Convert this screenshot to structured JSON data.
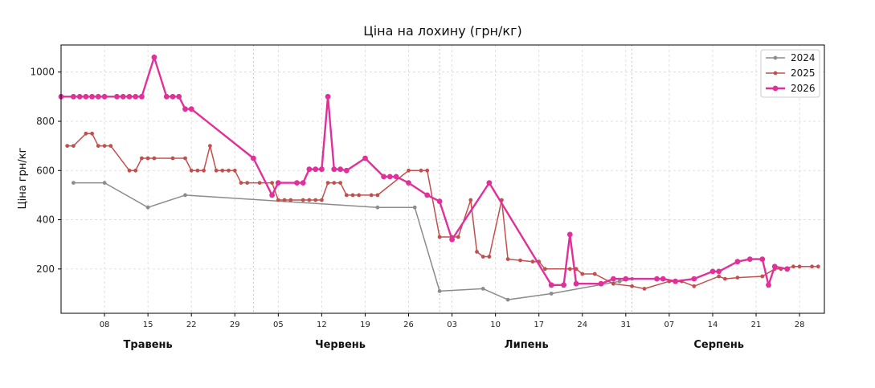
{
  "chart_data": {
    "type": "line",
    "title": "Ціна на лохину (грн/кг)",
    "xlabel": "",
    "ylabel": "Ціна грн/кг",
    "x_range": [
      "05-01",
      "09-01"
    ],
    "ylim": [
      20,
      1110
    ],
    "yticks": [
      200,
      400,
      600,
      800,
      1000
    ],
    "xticks": [
      {
        "date": "05-08",
        "label": "08"
      },
      {
        "date": "05-15",
        "label": "15"
      },
      {
        "date": "05-22",
        "label": "22"
      },
      {
        "date": "05-29",
        "label": "29"
      },
      {
        "date": "06-05",
        "label": "05"
      },
      {
        "date": "06-12",
        "label": "12"
      },
      {
        "date": "06-19",
        "label": "19"
      },
      {
        "date": "06-26",
        "label": "26"
      },
      {
        "date": "07-03",
        "label": "03"
      },
      {
        "date": "07-10",
        "label": "10"
      },
      {
        "date": "07-17",
        "label": "17"
      },
      {
        "date": "07-24",
        "label": "24"
      },
      {
        "date": "07-31",
        "label": "31"
      },
      {
        "date": "08-07",
        "label": "07"
      },
      {
        "date": "08-14",
        "label": "14"
      },
      {
        "date": "08-21",
        "label": "21"
      },
      {
        "date": "08-28",
        "label": "28"
      }
    ],
    "months": [
      {
        "label": "Травень",
        "center": "05-15"
      },
      {
        "label": "Червень",
        "center": "06-15"
      },
      {
        "label": "Липень",
        "center": "07-15"
      },
      {
        "label": "Серпень",
        "center": "08-15"
      }
    ],
    "month_separators": [
      "06-01",
      "07-01",
      "08-01"
    ],
    "grid": true,
    "legend": "top-right",
    "series": [
      {
        "name": "2024",
        "color": "#8c8c8c",
        "points": [
          [
            "05-03",
            550
          ],
          [
            "05-08",
            550
          ],
          [
            "05-15",
            450
          ],
          [
            "05-21",
            500
          ],
          [
            "06-21",
            450
          ],
          [
            "06-27",
            450
          ],
          [
            "07-01",
            110
          ],
          [
            "07-08",
            120
          ],
          [
            "07-12",
            75
          ],
          [
            "07-19",
            100
          ],
          [
            "07-30",
            150
          ],
          [
            "08-01",
            160
          ]
        ]
      },
      {
        "name": "2025",
        "color": "#c0504d",
        "points": [
          [
            "05-02",
            700
          ],
          [
            "05-03",
            700
          ],
          [
            "05-05",
            750
          ],
          [
            "05-06",
            750
          ],
          [
            "05-07",
            700
          ],
          [
            "05-08",
            700
          ],
          [
            "05-09",
            700
          ],
          [
            "05-12",
            600
          ],
          [
            "05-13",
            600
          ],
          [
            "05-14",
            650
          ],
          [
            "05-15",
            650
          ],
          [
            "05-16",
            650
          ],
          [
            "05-19",
            650
          ],
          [
            "05-21",
            650
          ],
          [
            "05-22",
            600
          ],
          [
            "05-23",
            600
          ],
          [
            "05-24",
            600
          ],
          [
            "05-25",
            700
          ],
          [
            "05-26",
            600
          ],
          [
            "05-27",
            600
          ],
          [
            "05-28",
            600
          ],
          [
            "05-29",
            600
          ],
          [
            "05-30",
            550
          ],
          [
            "05-31",
            550
          ],
          [
            "06-02",
            550
          ],
          [
            "06-04",
            550
          ],
          [
            "06-05",
            480
          ],
          [
            "06-06",
            480
          ],
          [
            "06-07",
            480
          ],
          [
            "06-09",
            480
          ],
          [
            "06-10",
            480
          ],
          [
            "06-11",
            480
          ],
          [
            "06-12",
            480
          ],
          [
            "06-13",
            550
          ],
          [
            "06-14",
            550
          ],
          [
            "06-15",
            550
          ],
          [
            "06-16",
            500
          ],
          [
            "06-17",
            500
          ],
          [
            "06-18",
            500
          ],
          [
            "06-20",
            500
          ],
          [
            "06-21",
            500
          ],
          [
            "06-26",
            600
          ],
          [
            "06-28",
            600
          ],
          [
            "06-29",
            600
          ],
          [
            "07-01",
            330
          ],
          [
            "07-03",
            330
          ],
          [
            "07-04",
            330
          ],
          [
            "07-06",
            480
          ],
          [
            "07-07",
            270
          ],
          [
            "07-08",
            250
          ],
          [
            "07-09",
            250
          ],
          [
            "07-11",
            480
          ],
          [
            "07-12",
            240
          ],
          [
            "07-14",
            235
          ],
          [
            "07-16",
            230
          ],
          [
            "07-17",
            230
          ],
          [
            "07-18",
            200
          ],
          [
            "07-22",
            200
          ],
          [
            "07-23",
            200
          ],
          [
            "07-24",
            180
          ],
          [
            "07-26",
            180
          ],
          [
            "07-29",
            140
          ],
          [
            "08-01",
            130
          ],
          [
            "08-03",
            120
          ],
          [
            "08-07",
            150
          ],
          [
            "08-08",
            150
          ],
          [
            "08-09",
            150
          ],
          [
            "08-11",
            130
          ],
          [
            "08-15",
            170
          ],
          [
            "08-16",
            160
          ],
          [
            "08-18",
            165
          ],
          [
            "08-22",
            170
          ],
          [
            "08-24",
            200
          ],
          [
            "08-25",
            200
          ],
          [
            "08-27",
            210
          ],
          [
            "08-28",
            210
          ],
          [
            "08-30",
            210
          ],
          [
            "08-31",
            210
          ]
        ]
      },
      {
        "name": "2026",
        "color": "#e0309a",
        "points": [
          [
            "05-01",
            900
          ],
          [
            "05-03",
            900
          ],
          [
            "05-04",
            900
          ],
          [
            "05-05",
            900
          ],
          [
            "05-06",
            900
          ],
          [
            "05-07",
            900
          ],
          [
            "05-08",
            900
          ],
          [
            "05-10",
            900
          ],
          [
            "05-11",
            900
          ],
          [
            "05-12",
            900
          ],
          [
            "05-13",
            900
          ],
          [
            "05-14",
            900
          ],
          [
            "05-16",
            1060
          ],
          [
            "05-18",
            900
          ],
          [
            "05-19",
            900
          ],
          [
            "05-20",
            900
          ],
          [
            "05-21",
            850
          ],
          [
            "05-22",
            850
          ],
          [
            "06-01",
            650
          ],
          [
            "06-04",
            500
          ],
          [
            "06-05",
            550
          ],
          [
            "06-08",
            550
          ],
          [
            "06-09",
            550
          ],
          [
            "06-10",
            605
          ],
          [
            "06-11",
            605
          ],
          [
            "06-12",
            605
          ],
          [
            "06-13",
            900
          ],
          [
            "06-14",
            605
          ],
          [
            "06-15",
            605
          ],
          [
            "06-16",
            600
          ],
          [
            "06-19",
            650
          ],
          [
            "06-22",
            575
          ],
          [
            "06-23",
            575
          ],
          [
            "06-24",
            575
          ],
          [
            "06-26",
            550
          ],
          [
            "06-29",
            500
          ],
          [
            "07-01",
            475
          ],
          [
            "07-03",
            320
          ],
          [
            "07-09",
            550
          ],
          [
            "07-19",
            135
          ],
          [
            "07-21",
            135
          ],
          [
            "07-22",
            340
          ],
          [
            "07-23",
            140
          ],
          [
            "07-27",
            140
          ],
          [
            "07-29",
            160
          ],
          [
            "07-31",
            160
          ],
          [
            "08-05",
            160
          ],
          [
            "08-06",
            160
          ],
          [
            "08-08",
            150
          ],
          [
            "08-11",
            160
          ],
          [
            "08-14",
            190
          ],
          [
            "08-15",
            190
          ],
          [
            "08-18",
            230
          ],
          [
            "08-20",
            240
          ],
          [
            "08-22",
            240
          ],
          [
            "08-23",
            135
          ],
          [
            "08-24",
            210
          ],
          [
            "08-26",
            200
          ]
        ]
      }
    ]
  }
}
